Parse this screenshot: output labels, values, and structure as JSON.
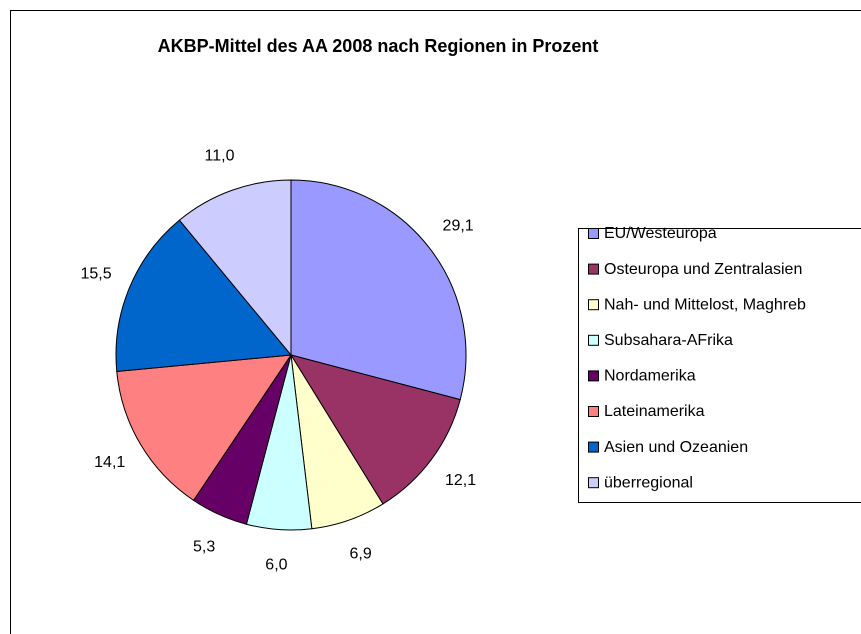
{
  "chart_data": {
    "type": "pie",
    "title": "AKBP-Mittel des AA 2008 nach Regionen in Prozent",
    "categories": [
      "EU/Westeuropa",
      "Osteuropa und Zentralasien",
      "Nah- und Mittelost, Maghreb",
      "Subsahara-AFrika",
      "Nordamerika",
      "Lateinamerika",
      "Asien und Ozeanien",
      "überregional"
    ],
    "values": [
      29.1,
      12.1,
      6.9,
      6.0,
      5.3,
      14.1,
      15.5,
      11.0
    ],
    "value_labels": [
      "29,1",
      "12,1",
      "6,9",
      "6,0",
      "5,3",
      "14,1",
      "15,5",
      "11,0"
    ],
    "colors": [
      "#9999ff",
      "#993366",
      "#ffffcc",
      "#ccffff",
      "#660066",
      "#ff8080",
      "#0066cc",
      "#ccccff"
    ],
    "legend": "right"
  }
}
